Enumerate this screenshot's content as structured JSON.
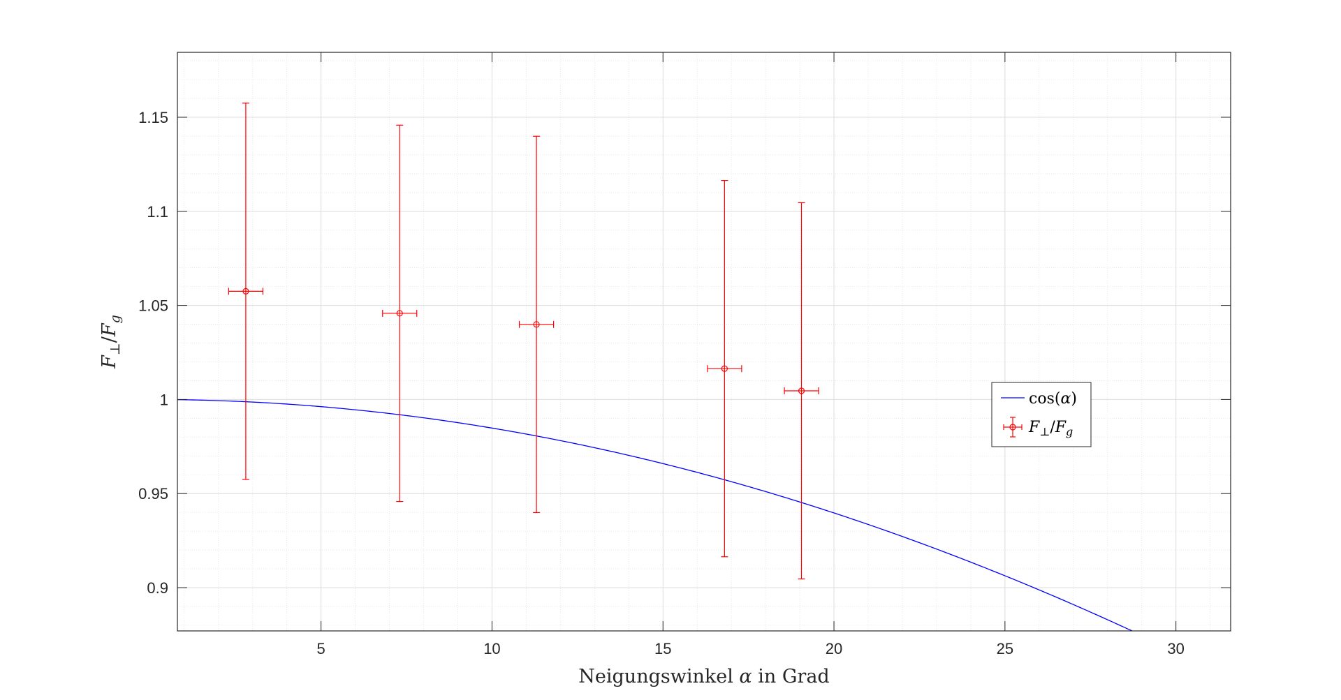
{
  "chart_data": {
    "type": "scatter",
    "title": "",
    "xlabel": {
      "text_before": "Neigungswinkel ",
      "symbol": "α",
      "text_after": " in Grad"
    },
    "ylabel": {
      "numerator": "F",
      "numerator_sub": "⊥",
      "slash": "/",
      "denominator": "F",
      "denominator_sub": "g"
    },
    "xlim": [
      0.8,
      31.6
    ],
    "ylim": [
      0.877,
      1.1845
    ],
    "x_ticks": [
      5,
      10,
      15,
      20,
      25,
      30
    ],
    "y_ticks": [
      0.9,
      0.95,
      1,
      1.05,
      1.1,
      1.15
    ],
    "y_tick_labels": [
      "0.9",
      "0.95",
      "1",
      "1.05",
      "1.1",
      "1.15"
    ],
    "grid": true,
    "minor_grid": true,
    "legend_position": "right",
    "series": [
      {
        "name": "cos(α)",
        "kind": "line",
        "function": "cos_deg",
        "color": "#0000ff"
      },
      {
        "name": "F⊥/Fg",
        "kind": "errorbar",
        "color": "#ff0000",
        "points": [
          {
            "x": 2.8,
            "y": 1.0575,
            "xerr": 0.5,
            "yerr": 0.1
          },
          {
            "x": 7.3,
            "y": 1.0458,
            "xerr": 0.5,
            "yerr": 0.1
          },
          {
            "x": 11.3,
            "y": 1.0399,
            "xerr": 0.5,
            "yerr": 0.1
          },
          {
            "x": 16.8,
            "y": 1.0164,
            "xerr": 0.5,
            "yerr": 0.1
          },
          {
            "x": 19.05,
            "y": 1.0046,
            "xerr": 0.5,
            "yerr": 0.1
          }
        ]
      }
    ],
    "legend": {
      "line_label": {
        "pre": "cos(",
        "sym": "α",
        "post": ")"
      },
      "err_label": {
        "num": "F",
        "num_sub": "⊥",
        "slash": "/",
        "den": "F",
        "den_sub": "g"
      }
    }
  }
}
